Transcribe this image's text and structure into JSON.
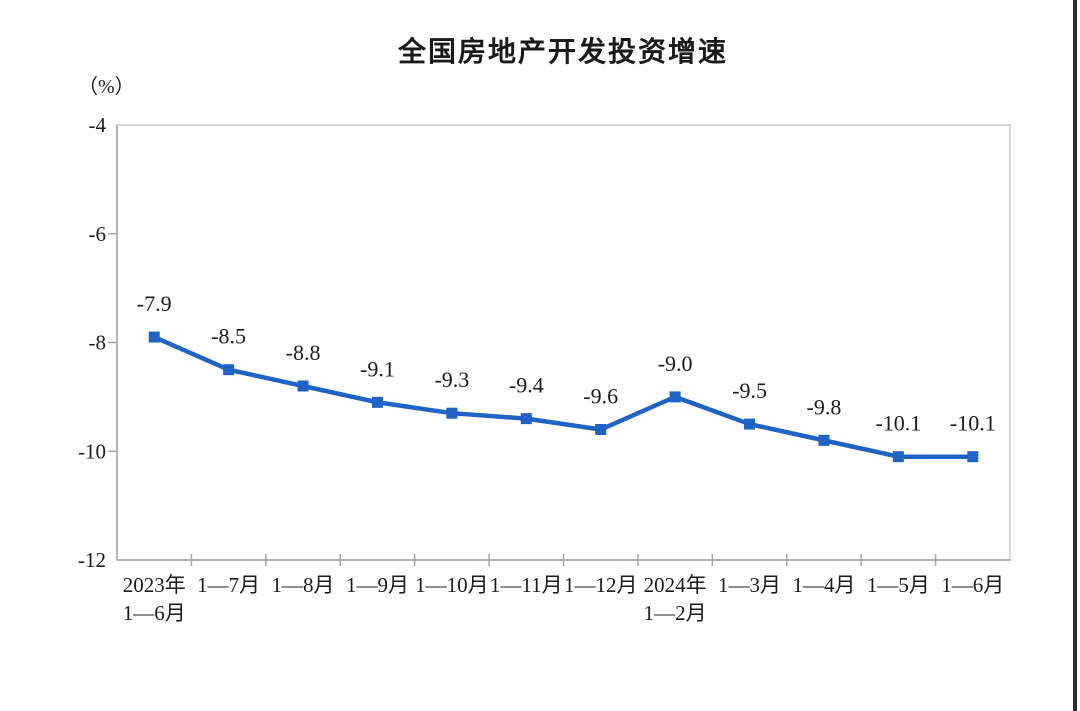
{
  "title": "全国房地产开发投资增速",
  "unit_label": "（%）",
  "chart_data": {
    "type": "line",
    "title": "全国房地产开发投资增速",
    "ylabel": "（%）",
    "categories": [
      [
        "2023年",
        "1—6月"
      ],
      [
        "1—7月"
      ],
      [
        "1—8月"
      ],
      [
        "1—9月"
      ],
      [
        "1—10月"
      ],
      [
        "1—11月"
      ],
      [
        "1—12月"
      ],
      [
        "2024年",
        "1—2月"
      ],
      [
        "1—3月"
      ],
      [
        "1—4月"
      ],
      [
        "1—5月"
      ],
      [
        "1—6月"
      ]
    ],
    "values": [
      -7.9,
      -8.5,
      -8.8,
      -9.1,
      -9.3,
      -9.4,
      -9.6,
      -9.0,
      -9.5,
      -9.8,
      -10.1,
      -10.1
    ],
    "data_labels": [
      "-7.9",
      "-8.5",
      "-8.8",
      "-9.1",
      "-9.3",
      "-9.4",
      "-9.6",
      "-9.0",
      "-9.5",
      "-9.8",
      "-10.1",
      "-10.1"
    ],
    "y_ticks": [
      -4,
      -6,
      -8,
      -10,
      -12
    ],
    "ylim": [
      -12,
      -4
    ],
    "grid": false,
    "legend": "none",
    "line_color": "#1f63c6",
    "marker": "square",
    "text_color": "#1b1b1b",
    "axis_color": "#a6a6a6",
    "border_color": "#d9d9d9"
  }
}
